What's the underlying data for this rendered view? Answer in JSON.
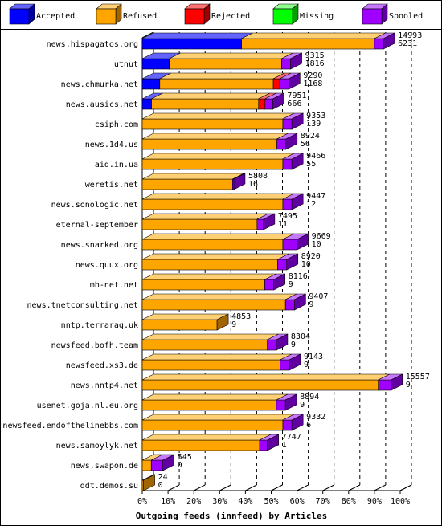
{
  "chart_data": {
    "type": "bar",
    "orientation": "horizontal",
    "stacked": true,
    "bars_3d": true,
    "title": "Outgoing feeds (innfeed) by Articles",
    "legend_position": "top",
    "xlim": [
      0,
      100
    ],
    "x_ticks": [
      "0%",
      "10%",
      "20%",
      "30%",
      "40%",
      "50%",
      "60%",
      "70%",
      "80%",
      "90%",
      "100%"
    ],
    "series": [
      {
        "name": "Accepted",
        "color": "#0000ff",
        "side": "#0000a0",
        "top": "#6464ff"
      },
      {
        "name": "Refused",
        "color": "#ffa500",
        "side": "#a06400",
        "top": "#ffd073"
      },
      {
        "name": "Rejected",
        "color": "#ff0000",
        "side": "#a00000",
        "top": "#ff7070"
      },
      {
        "name": "Missing",
        "color": "#00ff00",
        "side": "#00a000",
        "top": "#90ff90"
      },
      {
        "name": "Spooled",
        "color": "#a000ff",
        "side": "#6000a0",
        "top": "#c878ff"
      }
    ],
    "categories": [
      "news.hispagatos.org",
      "utnut",
      "news.chmurka.net",
      "news.ausics.net",
      "csiph.com",
      "news.1d4.us",
      "aid.in.ua",
      "weretis.net",
      "news.sonologic.net",
      "eternal-september",
      "news.snarked.org",
      "news.quux.org",
      "mb-net.net",
      "news.tnetconsulting.net",
      "nntp.terraraq.uk",
      "newsfeed.bofh.team",
      "newsfeed.xs3.de",
      "news.nntp4.net",
      "usenet.goja.nl.eu.org",
      "newsfeed.endofthelinebbs.com",
      "news.samoylyk.net",
      "news.swapon.de",
      "ddt.demos.su"
    ],
    "label_top": [
      14993,
      9315,
      9290,
      7951,
      9353,
      8924,
      9466,
      5808,
      9447,
      7495,
      9669,
      8920,
      8116,
      9407,
      4853,
      8304,
      9143,
      15557,
      8894,
      9332,
      7747,
      545,
      24
    ],
    "label_bottom": [
      6231,
      1816,
      1168,
      666,
      139,
      56,
      55,
      16,
      12,
      11,
      10,
      10,
      9,
      9,
      9,
      9,
      9,
      9,
      9,
      6,
      1,
      0,
      0
    ],
    "values": {
      "Accepted": [
        38.5,
        10.5,
        6.8,
        3.6,
        0,
        0,
        0,
        0,
        0,
        0,
        0,
        0,
        0,
        0,
        0,
        0,
        0,
        0,
        0,
        0,
        0,
        0,
        0
      ],
      "Refused": [
        51.5,
        43.5,
        44.0,
        41.5,
        54.5,
        52.2,
        54.5,
        35.0,
        54.5,
        44.5,
        54.5,
        52.5,
        47.5,
        55.5,
        29.0,
        48.5,
        53.5,
        91.5,
        52.0,
        54.5,
        45.5,
        3.5,
        0.5
      ],
      "Rejected": [
        0,
        0,
        2.5,
        2.5,
        0,
        0,
        0,
        0,
        0,
        0,
        0,
        0,
        0,
        0,
        0,
        0,
        0,
        0,
        0,
        0,
        0,
        0,
        0
      ],
      "Missing": [
        0,
        0,
        0,
        0,
        0,
        0,
        0,
        0,
        0,
        0,
        0,
        0,
        0,
        0,
        0,
        0,
        0,
        0,
        0,
        0,
        0,
        0,
        0
      ],
      "Spooled": [
        3.5,
        3.5,
        3.5,
        3.0,
        3.5,
        3.5,
        3.5,
        0.5,
        3.5,
        2.5,
        5.5,
        3.5,
        3.5,
        3.5,
        0,
        3.5,
        3.5,
        5.0,
        3.5,
        3.5,
        3.0,
        4.5,
        0
      ]
    }
  }
}
